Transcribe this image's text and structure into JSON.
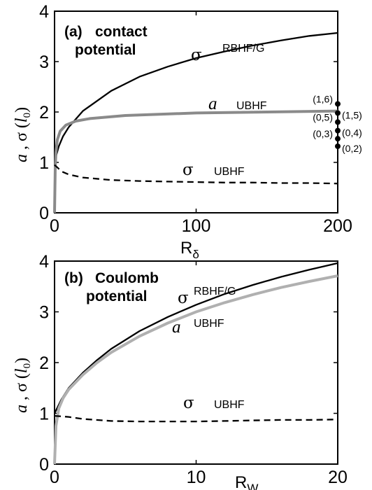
{
  "chart_data": [
    {
      "type": "line",
      "panel_label": "(a)",
      "title_lines": [
        "contact",
        "potential"
      ],
      "xlabel_main": "R",
      "xlabel_sub": "δ",
      "ylabel_parts": [
        "a",
        " , σ (",
        "l",
        "0",
        ")"
      ],
      "xlim": [
        0,
        200
      ],
      "ylim": [
        0,
        4
      ],
      "xticks": [
        0,
        100,
        200
      ],
      "yticks": [
        0,
        1,
        2,
        3,
        4
      ],
      "series": [
        {
          "symbol": "σ",
          "label": "RBHF/G",
          "style": "solid",
          "color": "#000000",
          "x": [
            0,
            1,
            3,
            6,
            10,
            20,
            40,
            60,
            80,
            100,
            120,
            140,
            160,
            180,
            200
          ],
          "y": [
            0.95,
            1.12,
            1.32,
            1.52,
            1.7,
            2.02,
            2.42,
            2.7,
            2.9,
            3.07,
            3.2,
            3.32,
            3.42,
            3.51,
            3.57
          ]
        },
        {
          "symbol": "a",
          "label": "UBHF",
          "style": "solid",
          "color": "#8a8a8a",
          "x": [
            0,
            0.5,
            1,
            2,
            4,
            8,
            15,
            25,
            50,
            100,
            150,
            200
          ],
          "y": [
            0,
            0.9,
            1.2,
            1.45,
            1.62,
            1.74,
            1.82,
            1.87,
            1.93,
            1.98,
            2.0,
            2.02
          ]
        },
        {
          "symbol": "σ",
          "label": "UBHF",
          "style": "dashed",
          "color": "#000000",
          "x": [
            0,
            2,
            5,
            10,
            20,
            40,
            60,
            80,
            100,
            120,
            140,
            160,
            180,
            200
          ],
          "y": [
            0.95,
            0.9,
            0.82,
            0.76,
            0.7,
            0.65,
            0.63,
            0.62,
            0.61,
            0.6,
            0.6,
            0.59,
            0.59,
            0.58
          ]
        }
      ],
      "points": [
        {
          "label": "(1,6)",
          "x": 200,
          "y": 2.16,
          "side": "left"
        },
        {
          "label": "(1,5)",
          "x": 200,
          "y": 1.98,
          "side": "right"
        },
        {
          "label": "(0,5)",
          "x": 200,
          "y": 1.8,
          "side": "left"
        },
        {
          "label": "(0,4)",
          "x": 200,
          "y": 1.63,
          "side": "right"
        },
        {
          "label": "(0,3)",
          "x": 200,
          "y": 1.47,
          "side": "left"
        },
        {
          "label": "(0,2)",
          "x": 200,
          "y": 1.32,
          "side": "right"
        }
      ]
    },
    {
      "type": "line",
      "panel_label": "(b)",
      "title_lines": [
        "Coulomb",
        "potential"
      ],
      "xlabel_main": "R",
      "xlabel_sub": "W",
      "ylabel_parts": [
        "a",
        " , σ (",
        "l",
        "0",
        ")"
      ],
      "xlim": [
        0,
        20
      ],
      "ylim": [
        0,
        4
      ],
      "xticks": [
        0,
        10,
        20
      ],
      "yticks": [
        0,
        1,
        2,
        3,
        4
      ],
      "series": [
        {
          "symbol": "σ",
          "label": "RBHF/G",
          "style": "solid",
          "color": "#000000",
          "x": [
            0,
            0.5,
            1,
            2,
            3,
            4,
            6,
            8,
            10,
            12,
            14,
            16,
            18,
            20
          ],
          "y": [
            1.0,
            1.28,
            1.5,
            1.8,
            2.05,
            2.27,
            2.62,
            2.9,
            3.14,
            3.35,
            3.53,
            3.69,
            3.83,
            3.96
          ]
        },
        {
          "symbol": "a",
          "label": "UBHF",
          "style": "solid",
          "color": "#b0b0b0",
          "x": [
            0,
            0.1,
            0.3,
            0.6,
            1,
            2,
            3,
            4,
            6,
            8,
            10,
            12,
            14,
            16,
            18,
            20
          ],
          "y": [
            0,
            0.75,
            1.1,
            1.3,
            1.47,
            1.76,
            2.0,
            2.2,
            2.52,
            2.78,
            3.0,
            3.18,
            3.34,
            3.48,
            3.6,
            3.71
          ]
        },
        {
          "symbol": "σ",
          "label": "UBHF",
          "style": "dashed",
          "color": "#000000",
          "x": [
            0,
            1,
            2,
            4,
            6,
            8,
            10,
            12,
            14,
            16,
            18,
            20
          ],
          "y": [
            0.95,
            0.93,
            0.89,
            0.85,
            0.84,
            0.84,
            0.84,
            0.85,
            0.86,
            0.87,
            0.87,
            0.88
          ]
        }
      ]
    }
  ]
}
